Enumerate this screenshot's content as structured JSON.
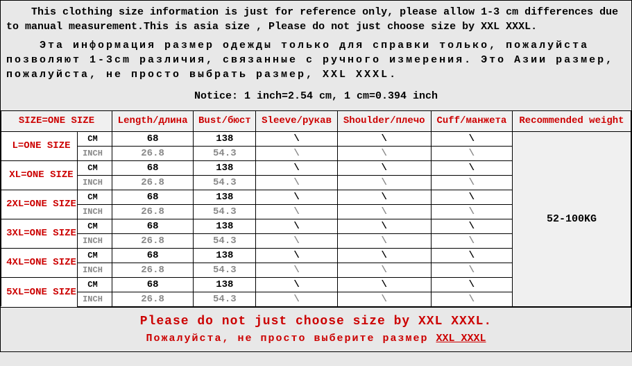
{
  "intro": {
    "en": "This clothing size information is just for reference only, please allow 1-3 cm differences due to manual measurement.This is asia size , Please do not just choose size by XXL XXXL.",
    "ru": "Эта информация размер одежды только для справки только, пожалуйста позволяют 1-3cm различия, связанные с ручного измерения. Это Азии размер, пожалуйста, не просто выбрать размер, XXL XXXL."
  },
  "notice": "Notice: 1 inch=2.54 cm, 1 cm=0.394 inch",
  "headers": {
    "size": "SIZE=ONE SIZE",
    "length": "Length/длина",
    "bust": "Bust/бюст",
    "sleeve": "Sleeve/рукав",
    "shoulder": "Shoulder/плечо",
    "cuff": "Cuff/манжета",
    "recommended": "Recommended weight"
  },
  "units": {
    "cm": "CM",
    "inch": "INCH"
  },
  "rows": [
    {
      "size": "L=ONE SIZE",
      "length_cm": "68",
      "length_in": "26.8",
      "bust_cm": "138",
      "bust_in": "54.3",
      "sleeve": "\\",
      "shoulder": "\\",
      "cuff": "\\"
    },
    {
      "size": "XL=ONE SIZE",
      "length_cm": "68",
      "length_in": "26.8",
      "bust_cm": "138",
      "bust_in": "54.3",
      "sleeve": "\\",
      "shoulder": "\\",
      "cuff": "\\"
    },
    {
      "size": "2XL=ONE SIZE",
      "length_cm": "68",
      "length_in": "26.8",
      "bust_cm": "138",
      "bust_in": "54.3",
      "sleeve": "\\",
      "shoulder": "\\",
      "cuff": "\\"
    },
    {
      "size": "3XL=ONE SIZE",
      "length_cm": "68",
      "length_in": "26.8",
      "bust_cm": "138",
      "bust_in": "54.3",
      "sleeve": "\\",
      "shoulder": "\\",
      "cuff": "\\"
    },
    {
      "size": "4XL=ONE SIZE",
      "length_cm": "68",
      "length_in": "26.8",
      "bust_cm": "138",
      "bust_in": "54.3",
      "sleeve": "\\",
      "shoulder": "\\",
      "cuff": "\\"
    },
    {
      "size": "5XL=ONE SIZE",
      "length_cm": "68",
      "length_in": "26.8",
      "bust_cm": "138",
      "bust_in": "54.3",
      "sleeve": "\\",
      "shoulder": "\\",
      "cuff": "\\"
    }
  ],
  "recommended_weight": "52-100KG",
  "footer": {
    "en": "Please do not just choose size by XXL XXXL.",
    "ru_prefix": "Пожалуйста, не просто выберите размер ",
    "ru_suffix": "XXL XXXL"
  },
  "colors": {
    "bg": "#e8e8e8",
    "text": "#000000",
    "red": "#cc0000",
    "gray": "#888888",
    "header_bg": "#f0f0f0",
    "border": "#000000"
  }
}
